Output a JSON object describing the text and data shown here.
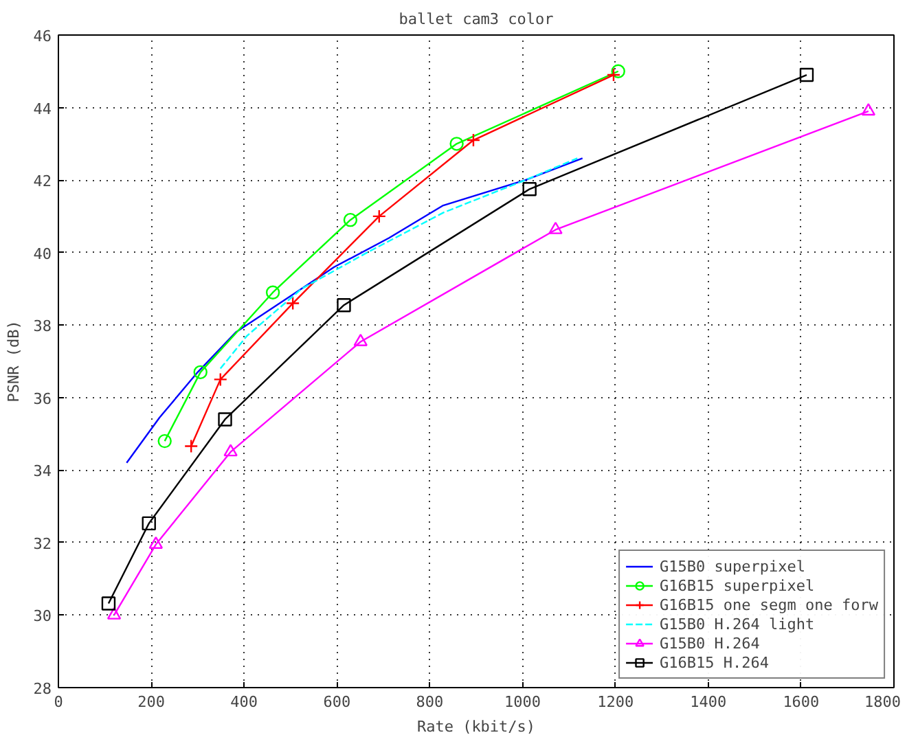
{
  "chart_data": {
    "type": "line",
    "title": "ballet cam3 color",
    "xlabel": "Rate (kbit/s)",
    "ylabel": "PSNR (dB)",
    "xlim": [
      0,
      1800
    ],
    "ylim": [
      28,
      46
    ],
    "xticks": [
      0,
      200,
      400,
      600,
      800,
      1000,
      1200,
      1400,
      1600,
      1800
    ],
    "yticks": [
      28,
      30,
      32,
      34,
      36,
      38,
      40,
      42,
      44,
      46
    ],
    "grid": true,
    "legend": "bottom right",
    "line_style": "solid",
    "series": [
      {
        "name": "G15B0 superpixel",
        "color": "#0000ff",
        "marker": "none",
        "x": [
          147,
          218,
          300,
          382,
          500,
          594,
          712,
          829,
          1006,
          1129
        ],
        "values": [
          34.2,
          35.45,
          36.7,
          37.8,
          38.8,
          39.6,
          40.4,
          41.3,
          42.0,
          42.6
        ]
      },
      {
        "name": "G16B15 superpixel",
        "color": "#00ff00",
        "marker": "circle",
        "x": [
          229,
          306,
          462,
          629,
          858,
          1206
        ],
        "values": [
          34.8,
          36.7,
          38.9,
          40.9,
          43.0,
          45.0
        ]
      },
      {
        "name": "G16B15 one segm one forw",
        "color": "#ff0000",
        "marker": "cross",
        "x": [
          286,
          349,
          505,
          691,
          894,
          1196
        ],
        "values": [
          34.66,
          36.5,
          38.6,
          41.0,
          43.1,
          44.9
        ]
      },
      {
        "name": "G15B0 H.264 light",
        "color": "#00ffff",
        "marker": "none",
        "line_style": "dashed",
        "x": [
          349,
          406,
          524,
          665,
          829,
          1006,
          1118
        ],
        "values": [
          36.8,
          37.7,
          39.0,
          40.0,
          41.1,
          42.0,
          42.6
        ]
      },
      {
        "name": "G15B0 H.264",
        "color": "#ff00ff",
        "marker": "triangle",
        "x": [
          120,
          210,
          371,
          651,
          1071,
          1745
        ],
        "values": [
          30.0,
          31.95,
          34.5,
          37.54,
          40.63,
          43.9
        ]
      },
      {
        "name": "G16B15 H.264",
        "color": "#000000",
        "marker": "square",
        "x": [
          108,
          195,
          359,
          615,
          1015,
          1612
        ],
        "values": [
          30.32,
          32.53,
          35.4,
          38.55,
          41.75,
          44.9
        ]
      }
    ]
  }
}
